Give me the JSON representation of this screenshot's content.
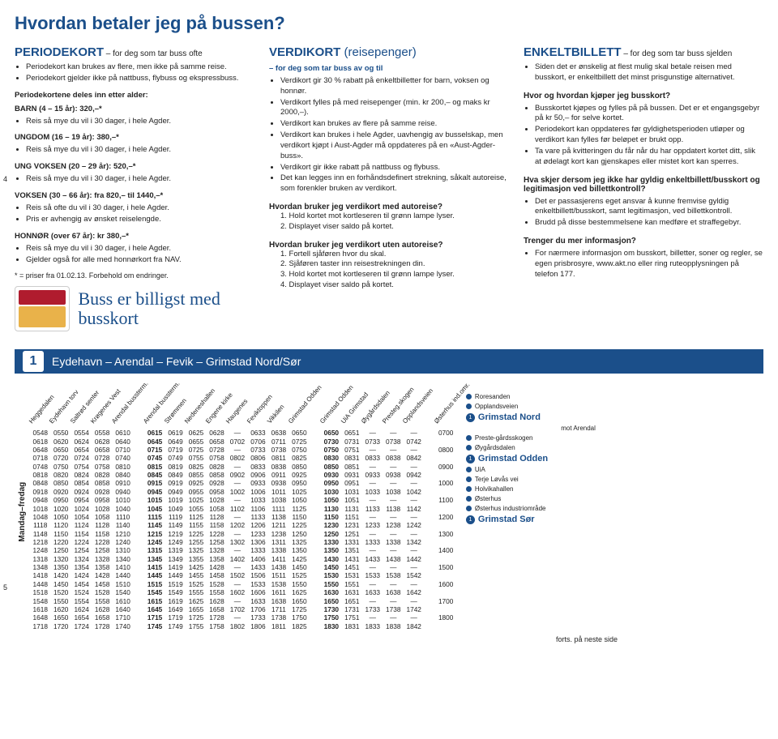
{
  "title": "Hvordan betaler jeg på bussen?",
  "sideNums": {
    "a": "4",
    "b": "5"
  },
  "col1": {
    "head": "PERIODEKORT",
    "sub": " – for deg som tar buss ofte",
    "top": [
      "Periodekort kan brukes av flere, men ikke på samme reise.",
      "Periodekort gjelder ikke på nattbuss, flybuss og ekspressbuss."
    ],
    "intro": "Periodekortene deles inn etter alder:",
    "cats": [
      {
        "label": "BARN (4 – 15 år): 320,–*",
        "items": [
          "Reis så mye du vil i 30 dager, i hele Agder."
        ]
      },
      {
        "label": "UNGDOM (16 – 19 år): 380,–*",
        "items": [
          "Reis så mye du vil i 30 dager, i hele Agder."
        ]
      },
      {
        "label": "UNG VOKSEN (20 – 29 år): 520,–*",
        "items": [
          "Reis så mye du vil i 30 dager, i hele Agder."
        ]
      },
      {
        "label": "VOKSEN (30 – 66 år): fra 820,– til 1440,–*",
        "items": [
          "Reis så ofte du vil i 30 dager, i hele Agder.",
          "Pris er avhengig av ønsket reiselengde."
        ]
      },
      {
        "label": "HONNØR (over 67 år): kr 380,–*",
        "items": [
          "Reis så mye du vil i 30 dager, i hele Agder.",
          "Gjelder også for alle med honnørkort fra NAV."
        ]
      }
    ],
    "foot": "* = priser fra 01.02.13. Forbehold om endringer.",
    "script": "Buss er billigst med busskort"
  },
  "col2": {
    "head": "VERDIKORT",
    "headSmall": " (reisepenger)",
    "sub": "– for deg som tar buss av og til",
    "items": [
      "Verdikort gir 30 % rabatt på enkeltbilletter for barn, voksen og honnør.",
      "Verdikort fylles på med reisepenger (min. kr 200,– og maks kr 2000,–).",
      "Verdikort kan brukes av flere på samme reise.",
      "Verdikort kan brukes i hele Agder, uavhengig av busselskap, men verdikort kjøpt i Aust-Agder må oppdateres på en «Aust-Agder-buss».",
      "Verdikort gir ikke rabatt på nattbuss og flybuss.",
      "Det kan legges inn en forhåndsdefinert strekning, såkalt autoreise, som forenkler bruken av verdikort."
    ],
    "q1": "Hvordan bruker jeg verdikort med autoreise?",
    "a1": [
      "1. Hold kortet mot kortleseren til grønn lampe lyser.",
      "2. Displayet viser saldo på kortet."
    ],
    "q2": "Hvordan bruker jeg verdikort uten autoreise?",
    "a2": [
      "1. Fortell sjåføren hvor du skal.",
      "2. Sjåføren taster inn reisestrekningen din.",
      "3. Hold kortet mot kortleseren til grønn lampe lyser.",
      "4. Displayet viser saldo på kortet."
    ]
  },
  "col3": {
    "head": "ENKELTBILLETT",
    "sub": " – for deg som tar buss sjelden",
    "top": [
      "Siden det er ønskelig at flest mulig skal betale reisen med busskort, er enkeltbillett det minst prisgunstige alternativet."
    ],
    "q1": "Hvor og hvordan kjøper jeg busskort?",
    "a1": [
      "Busskortet kjøpes og fylles på på bussen. Det er et engangsgebyr på kr 50,– for selve kortet.",
      "Periodekort kan oppdateres før gyldighetsperioden utløper og verdikort kan fylles før beløpet er brukt opp.",
      "Ta vare på kvitteringen du får når du har oppdatert kortet ditt, slik at ødelagt kort kan gjenskapes eller mistet kort kan sperres."
    ],
    "q2": "Hva skjer dersom jeg ikke har gyldig enkeltbillett/busskort og legitimasjon ved billettkontroll?",
    "a2": [
      "Det er passasjerens eget ansvar å kunne fremvise gyldig enkeltbillett/busskort, samt legitimasjon, ved billettkontroll.",
      "Brudd på disse bestemmelsene kan medføre et straffegebyr."
    ],
    "q3": "Trenger du mer informasjon?",
    "a3": [
      "For nærmere informasjon om busskort, billetter, soner og regler, se egen prisbrosyre, www.akt.no eller ring ruteopplysningen på telefon 177."
    ]
  },
  "route": {
    "num": "1",
    "name": "Eydehavn – Arendal – Fevik – Grimstad Nord/Sør"
  },
  "dayLabel": "Mandag–fredag",
  "headers": [
    "Heggedalen",
    "Eydehavn torv",
    "Saltrød senter",
    "Krøgenes Vest",
    "Arendal bussterm.",
    "",
    "Arendal bussterm.",
    "Strømmen",
    "Nedeneshallen",
    "Engene kirke",
    "Haugenes",
    "Feviktoppen",
    "Vikkilen",
    "Grimstad Odden",
    "",
    "Grimstad Odden",
    "UiA Grimstad",
    "Øygårdsdalen",
    "Presteg.skogen",
    "Opplandsveien",
    "",
    "Østerhus ind.omr."
  ],
  "boldCols": [
    6,
    15
  ],
  "rows": [
    [
      "0548",
      "0550",
      "0554",
      "0558",
      "0610",
      "",
      "0615",
      "0619",
      "0625",
      "0628",
      "—",
      "0633",
      "0638",
      "0650",
      "",
      "0650",
      "0651",
      "—",
      "—",
      "—",
      "",
      "0700"
    ],
    [
      "0618",
      "0620",
      "0624",
      "0628",
      "0640",
      "",
      "0645",
      "0649",
      "0655",
      "0658",
      "0702",
      "0706",
      "0711",
      "0725",
      "",
      "0730",
      "0731",
      "0733",
      "0738",
      "0742",
      "",
      ""
    ],
    [
      "0648",
      "0650",
      "0654",
      "0658",
      "0710",
      "",
      "0715",
      "0719",
      "0725",
      "0728",
      "—",
      "0733",
      "0738",
      "0750",
      "",
      "0750",
      "0751",
      "—",
      "—",
      "—",
      "",
      "0800"
    ],
    [
      "0718",
      "0720",
      "0724",
      "0728",
      "0740",
      "",
      "0745",
      "0749",
      "0755",
      "0758",
      "0802",
      "0806",
      "0811",
      "0825",
      "",
      "0830",
      "0831",
      "0833",
      "0838",
      "0842",
      "",
      ""
    ],
    [
      "0748",
      "0750",
      "0754",
      "0758",
      "0810",
      "",
      "0815",
      "0819",
      "0825",
      "0828",
      "—",
      "0833",
      "0838",
      "0850",
      "",
      "0850",
      "0851",
      "—",
      "—",
      "—",
      "",
      "0900"
    ],
    [
      "0818",
      "0820",
      "0824",
      "0828",
      "0840",
      "",
      "0845",
      "0849",
      "0855",
      "0858",
      "0902",
      "0906",
      "0911",
      "0925",
      "",
      "0930",
      "0931",
      "0933",
      "0938",
      "0942",
      "",
      ""
    ],
    [
      "0848",
      "0850",
      "0854",
      "0858",
      "0910",
      "",
      "0915",
      "0919",
      "0925",
      "0928",
      "—",
      "0933",
      "0938",
      "0950",
      "",
      "0950",
      "0951",
      "—",
      "—",
      "—",
      "",
      "1000"
    ],
    [
      "0918",
      "0920",
      "0924",
      "0928",
      "0940",
      "",
      "0945",
      "0949",
      "0955",
      "0958",
      "1002",
      "1006",
      "1011",
      "1025",
      "",
      "1030",
      "1031",
      "1033",
      "1038",
      "1042",
      "",
      ""
    ],
    [
      "0948",
      "0950",
      "0954",
      "0958",
      "1010",
      "",
      "1015",
      "1019",
      "1025",
      "1028",
      "—",
      "1033",
      "1038",
      "1050",
      "",
      "1050",
      "1051",
      "—",
      "—",
      "—",
      "",
      "1100"
    ],
    [
      "1018",
      "1020",
      "1024",
      "1028",
      "1040",
      "",
      "1045",
      "1049",
      "1055",
      "1058",
      "1102",
      "1106",
      "1111",
      "1125",
      "",
      "1130",
      "1131",
      "1133",
      "1138",
      "1142",
      "",
      ""
    ],
    [
      "1048",
      "1050",
      "1054",
      "1058",
      "1110",
      "",
      "1115",
      "1119",
      "1125",
      "1128",
      "—",
      "1133",
      "1138",
      "1150",
      "",
      "1150",
      "1151",
      "—",
      "—",
      "—",
      "",
      "1200"
    ],
    [
      "1118",
      "1120",
      "1124",
      "1128",
      "1140",
      "",
      "1145",
      "1149",
      "1155",
      "1158",
      "1202",
      "1206",
      "1211",
      "1225",
      "",
      "1230",
      "1231",
      "1233",
      "1238",
      "1242",
      "",
      ""
    ],
    [
      "1148",
      "1150",
      "1154",
      "1158",
      "1210",
      "",
      "1215",
      "1219",
      "1225",
      "1228",
      "—",
      "1233",
      "1238",
      "1250",
      "",
      "1250",
      "1251",
      "—",
      "—",
      "—",
      "",
      "1300"
    ],
    [
      "1218",
      "1220",
      "1224",
      "1228",
      "1240",
      "",
      "1245",
      "1249",
      "1255",
      "1258",
      "1302",
      "1306",
      "1311",
      "1325",
      "",
      "1330",
      "1331",
      "1333",
      "1338",
      "1342",
      "",
      ""
    ],
    [
      "1248",
      "1250",
      "1254",
      "1258",
      "1310",
      "",
      "1315",
      "1319",
      "1325",
      "1328",
      "—",
      "1333",
      "1338",
      "1350",
      "",
      "1350",
      "1351",
      "—",
      "—",
      "—",
      "",
      "1400"
    ],
    [
      "1318",
      "1320",
      "1324",
      "1328",
      "1340",
      "",
      "1345",
      "1349",
      "1355",
      "1358",
      "1402",
      "1406",
      "1411",
      "1425",
      "",
      "1430",
      "1431",
      "1433",
      "1438",
      "1442",
      "",
      ""
    ],
    [
      "1348",
      "1350",
      "1354",
      "1358",
      "1410",
      "",
      "1415",
      "1419",
      "1425",
      "1428",
      "—",
      "1433",
      "1438",
      "1450",
      "",
      "1450",
      "1451",
      "—",
      "—",
      "—",
      "",
      "1500"
    ],
    [
      "1418",
      "1420",
      "1424",
      "1428",
      "1440",
      "",
      "1445",
      "1449",
      "1455",
      "1458",
      "1502",
      "1506",
      "1511",
      "1525",
      "",
      "1530",
      "1531",
      "1533",
      "1538",
      "1542",
      "",
      ""
    ],
    [
      "1448",
      "1450",
      "1454",
      "1458",
      "1510",
      "",
      "1515",
      "1519",
      "1525",
      "1528",
      "—",
      "1533",
      "1538",
      "1550",
      "",
      "1550",
      "1551",
      "—",
      "—",
      "—",
      "",
      "1600"
    ],
    [
      "1518",
      "1520",
      "1524",
      "1528",
      "1540",
      "",
      "1545",
      "1549",
      "1555",
      "1558",
      "1602",
      "1606",
      "1611",
      "1625",
      "",
      "1630",
      "1631",
      "1633",
      "1638",
      "1642",
      "",
      ""
    ],
    [
      "1548",
      "1550",
      "1554",
      "1558",
      "1610",
      "",
      "1615",
      "1619",
      "1625",
      "1628",
      "—",
      "1633",
      "1638",
      "1650",
      "",
      "1650",
      "1651",
      "—",
      "—",
      "—",
      "",
      "1700"
    ],
    [
      "1618",
      "1620",
      "1624",
      "1628",
      "1640",
      "",
      "1645",
      "1649",
      "1655",
      "1658",
      "1702",
      "1706",
      "1711",
      "1725",
      "",
      "1730",
      "1731",
      "1733",
      "1738",
      "1742",
      "",
      ""
    ],
    [
      "1648",
      "1650",
      "1654",
      "1658",
      "1710",
      "",
      "1715",
      "1719",
      "1725",
      "1728",
      "—",
      "1733",
      "1738",
      "1750",
      "",
      "1750",
      "1751",
      "—",
      "—",
      "—",
      "",
      "1800"
    ],
    [
      "1718",
      "1720",
      "1724",
      "1728",
      "1740",
      "",
      "1745",
      "1749",
      "1755",
      "1758",
      "1802",
      "1806",
      "1811",
      "1825",
      "",
      "1830",
      "1831",
      "1833",
      "1838",
      "1842",
      "",
      ""
    ]
  ],
  "mapStops": [
    {
      "l": "Roresanden",
      "t": "s"
    },
    {
      "l": "Opplandsveien",
      "t": "s"
    },
    {
      "l": "Grimstad Nord",
      "t": "big"
    },
    {
      "l": "mot Arendal",
      "t": "note"
    },
    {
      "l": "Preste-gårdsskogen",
      "t": "s"
    },
    {
      "l": "Øygårdsdalen",
      "t": "s"
    },
    {
      "l": "Grimstad Odden",
      "t": "big"
    },
    {
      "l": "UiA",
      "t": "s"
    },
    {
      "l": "Terje Løvås vei",
      "t": "s"
    },
    {
      "l": "Holvikahallen",
      "t": "s"
    },
    {
      "l": "Østerhus",
      "t": "s"
    },
    {
      "l": "Østerhus industriområde",
      "t": "s"
    },
    {
      "l": "Grimstad Sør",
      "t": "big"
    }
  ],
  "cont": "forts. på neste side"
}
